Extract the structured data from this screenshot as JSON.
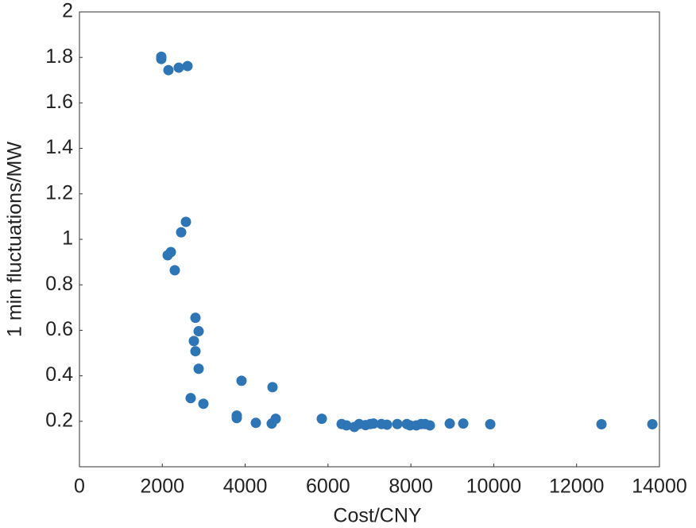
{
  "chart_data": {
    "type": "scatter",
    "x_label": "Cost/CNY",
    "y_label": "1 min fluctuations/MW",
    "xlim": [
      0,
      14000
    ],
    "ylim": [
      0,
      2
    ],
    "xticks": [
      0,
      2000,
      4000,
      6000,
      8000,
      10000,
      12000,
      14000
    ],
    "yticks": [
      0.2,
      0.4,
      0.6,
      0.8,
      1,
      1.2,
      1.4,
      1.6,
      1.8,
      2
    ],
    "color": "#2e75b6",
    "x": [
      1975,
      1975,
      2148,
      2397,
      2608,
      2570,
      2455,
      2206,
      2129,
      2301,
      2800,
      2877,
      2762,
      2800,
      2877,
      2685,
      2992,
      3912,
      4660,
      3797,
      3797,
      4258,
      4641,
      4737,
      5850,
      6329,
      6445,
      6636,
      6751,
      6905,
      7020,
      7097,
      7289,
      7423,
      7672,
      7902,
      7979,
      8132,
      8247,
      8343,
      8458,
      8938,
      9264,
      9916,
      12601,
      13829
    ],
    "values": [
      1.803,
      1.793,
      1.744,
      1.755,
      1.762,
      1.077,
      1.031,
      0.944,
      0.93,
      0.864,
      0.655,
      0.596,
      0.553,
      0.508,
      0.431,
      0.302,
      0.277,
      0.378,
      0.35,
      0.225,
      0.214,
      0.193,
      0.19,
      0.211,
      0.211,
      0.188,
      0.182,
      0.175,
      0.188,
      0.183,
      0.188,
      0.19,
      0.188,
      0.185,
      0.188,
      0.188,
      0.182,
      0.182,
      0.188,
      0.188,
      0.182,
      0.19,
      0.19,
      0.187,
      0.187,
      0.187
    ]
  }
}
